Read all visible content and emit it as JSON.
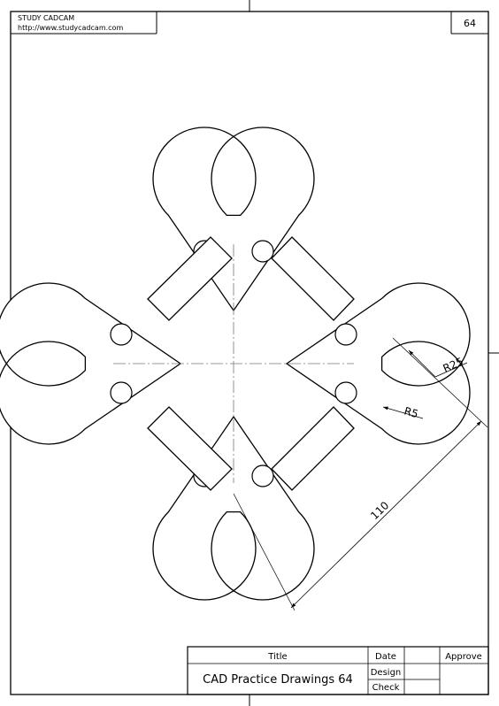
{
  "header": {
    "brand": "STUDY CADCAM",
    "url": "http://www.studycadcam.com",
    "sheet_number": "64"
  },
  "drawing": {
    "dim_r25": "R25",
    "dim_r5": "R5",
    "dim_110": "110"
  },
  "title_block": {
    "title_label": "Title",
    "title_value": "CAD Practice Drawings 64",
    "date_label": "Date",
    "approve_label": "Approve",
    "design_label": "Design",
    "check_label": "Check"
  }
}
